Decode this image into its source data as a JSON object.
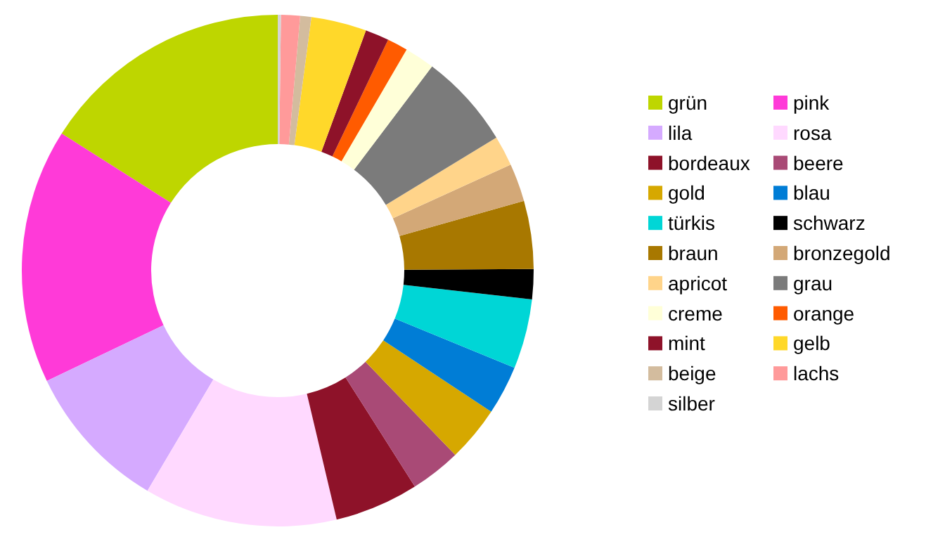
{
  "chart_data": {
    "type": "donut",
    "legend": "right",
    "categories": [
      "grün",
      "pink",
      "lila",
      "rosa",
      "bordeaux",
      "beere",
      "gold",
      "blau",
      "türkis",
      "schwarz",
      "braun",
      "bronzegold",
      "apricot",
      "grau",
      "creme",
      "orange",
      "mint",
      "gelb",
      "beige",
      "lachs",
      "silber"
    ],
    "values": [
      16.0,
      16.1,
      9.4,
      12.2,
      5.3,
      3.2,
      3.5,
      3.1,
      4.4,
      1.9,
      4.3,
      2.4,
      1.9,
      6.0,
      1.9,
      1.3,
      1.5,
      3.5,
      0.7,
      1.2,
      0.2
    ],
    "colors": [
      "#bed600",
      "#ff3ad8",
      "#d5aaff",
      "#ffd9ff",
      "#8e1229",
      "#a94a76",
      "#d6a800",
      "#007dd6",
      "#00d6d6",
      "#000000",
      "#a87800",
      "#d3a877",
      "#ffd48a",
      "#7b7b7b",
      "#ffffd8",
      "#ff5b00",
      "#8e1229",
      "#ffd82a",
      "#d3bc9e",
      "#ff9a9a",
      "#d4d4d4"
    ]
  }
}
